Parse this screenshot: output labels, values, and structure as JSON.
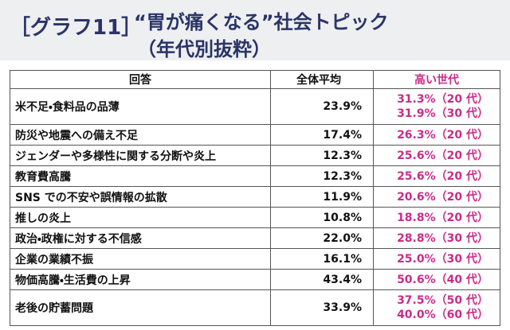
{
  "header": {
    "tag": "［グラフ11］",
    "title": "“胃が痛くなる”社会トピック",
    "subtitle": "（年代別抜粋）"
  },
  "table": {
    "columns": [
      "回答",
      "全体平均",
      "高い世代"
    ],
    "rows": [
      [
        "米不足・食料品の品薄",
        "23.9%",
        [
          "31.3%（20 代）",
          "31.9%（30 代）"
        ]
      ],
      [
        "防災や地震への備え不足",
        "17.4%",
        [
          "26.3%（20 代）"
        ]
      ],
      [
        "ジェンダーや多様性に関する分断や炎上",
        "12.3%",
        [
          "25.6%（20 代）"
        ]
      ],
      [
        "教育費高騰",
        "12.3%",
        [
          "25.6%（20 代）"
        ]
      ],
      [
        "SNS での不安や誤情報の拡散",
        "11.9%",
        [
          "20.6%（20 代）"
        ]
      ],
      [
        "推しの炎上",
        "10.8%",
        [
          "18.8%（20 代）"
        ]
      ],
      [
        "政治・政権に対する不信感",
        "22.0%",
        [
          "28.8%（30 代）"
        ]
      ],
      [
        "企業の業績不振",
        "16.1%",
        [
          "25.0%（30 代）"
        ]
      ],
      [
        "物価高騰・生活費の上昇",
        "43.4%",
        [
          "50.6%（40 代）"
        ]
      ],
      [
        "老後の貯蓄問題",
        "33.9%",
        [
          "37.5%（50 代）",
          "40.0%（60 代）"
        ]
      ]
    ]
  }
}
